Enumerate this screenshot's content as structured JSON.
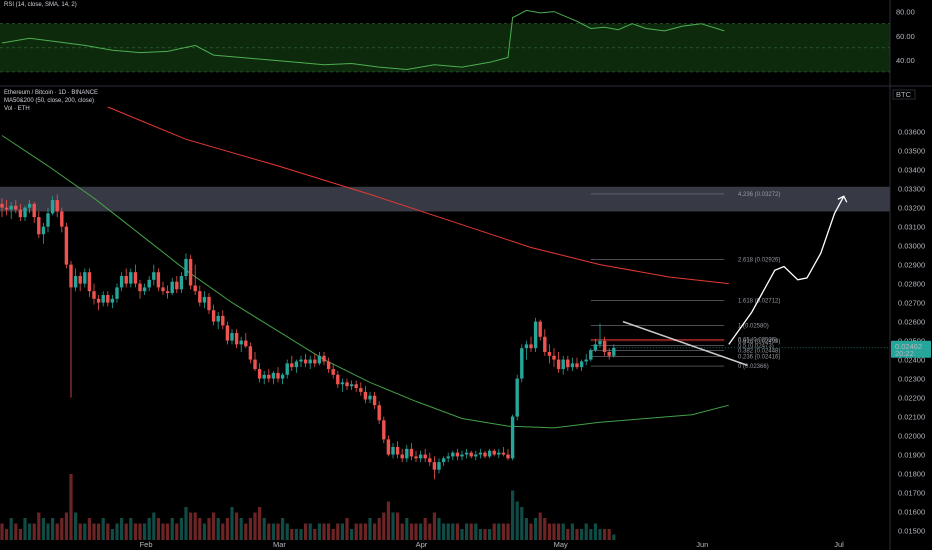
{
  "chart_data": {
    "type": "candlestick",
    "symbol": "Ethereum / Bitcoin · 1D · BINANCE",
    "indicators_legend": [
      "MA50&200 (50, close, 200, close)",
      "Vol · ETH"
    ],
    "rsi_label": "RSI (14, close, SMA, 14, 2)",
    "currency": "BTC",
    "last_price": "0.02462",
    "countdown": "20:22",
    "price_axis": {
      "min": 0.0145,
      "max": 0.0383,
      "ticks": [
        "0.03600",
        "0.03500",
        "0.03400",
        "0.03300",
        "0.03200",
        "0.03100",
        "0.03000",
        "0.02900",
        "0.02800",
        "0.02700",
        "0.02600",
        "0.02500",
        "0.02400",
        "0.02300",
        "0.02200",
        "0.02100",
        "0.02000",
        "0.01900",
        "0.01800",
        "0.01700",
        "0.01600",
        "0.01500"
      ]
    },
    "rsi_axis": {
      "ticks": [
        "80.00",
        "60.00",
        "40.00"
      ],
      "band": [
        30,
        70
      ]
    },
    "x_labels": [
      {
        "text": "Feb",
        "day": 31
      },
      {
        "text": "Mar",
        "day": 60
      },
      {
        "text": "Apr",
        "day": 91
      },
      {
        "text": "May",
        "day": 121
      },
      {
        "text": "Jun",
        "day": 152
      },
      {
        "text": "Jul",
        "day": 182
      }
    ],
    "resistance_zone": [
      0.0318,
      0.0331
    ],
    "fib_levels": [
      {
        "ratio": "0",
        "value": "0.02366",
        "label": "0 (0.02366)"
      },
      {
        "ratio": "0.236",
        "value": "0.02416",
        "label": "0.236 (0.02416)"
      },
      {
        "ratio": "0.382",
        "value": "0.02448",
        "label": "0.382 (0.02448)"
      },
      {
        "ratio": "0.5",
        "value": "0.02473",
        "label": "0.5 (0.02473)"
      },
      {
        "ratio": "0.618",
        "value": "0.02499",
        "label": "0.618 (0.02499)"
      },
      {
        "ratio": "0.65",
        "value": "0.02506",
        "label": "0.65 (0.02506)"
      },
      {
        "ratio": "1",
        "value": "0.02580",
        "label": "1 (0.02580)"
      },
      {
        "ratio": "1.618",
        "value": "0.02712",
        "label": "1.618 (0.02712)"
      },
      {
        "ratio": "2.618",
        "value": "0.02926",
        "label": "2.618 (0.02926)"
      },
      {
        "ratio": "4.236",
        "value": "0.03272",
        "label": "4.236 (0.03272)"
      }
    ],
    "ma200": [
      [
        23,
        0.0373
      ],
      [
        40,
        0.0356
      ],
      [
        60,
        0.0342
      ],
      [
        80,
        0.0327
      ],
      [
        100,
        0.0311
      ],
      [
        115,
        0.0299
      ],
      [
        130,
        0.029
      ],
      [
        145,
        0.02835
      ],
      [
        158,
        0.028
      ]
    ],
    "ma50": [
      [
        0,
        0.0358
      ],
      [
        10,
        0.0342
      ],
      [
        20,
        0.0325
      ],
      [
        30,
        0.0306
      ],
      [
        40,
        0.0287
      ],
      [
        50,
        0.027
      ],
      [
        60,
        0.0255
      ],
      [
        70,
        0.024
      ],
      [
        80,
        0.0228
      ],
      [
        90,
        0.0218
      ],
      [
        100,
        0.0209
      ],
      [
        110,
        0.0205
      ],
      [
        120,
        0.0204
      ],
      [
        130,
        0.0207
      ],
      [
        140,
        0.0209
      ],
      [
        150,
        0.0211
      ],
      [
        158,
        0.0216
      ]
    ],
    "projection": [
      [
        158,
        0.0248
      ],
      [
        163,
        0.0265
      ],
      [
        168,
        0.0287
      ],
      [
        170,
        0.0289
      ],
      [
        173,
        0.0282
      ],
      [
        175,
        0.0283
      ],
      [
        178,
        0.0296
      ],
      [
        181,
        0.0317
      ],
      [
        183,
        0.0326
      ]
    ],
    "trendline": [
      [
        135,
        0.026
      ],
      [
        162,
        0.0237
      ]
    ],
    "candles": [
      [
        0,
        0.0322,
        0.0325,
        0.0315,
        0.032
      ],
      [
        1,
        0.032,
        0.0324,
        0.0316,
        0.0319
      ],
      [
        2,
        0.0319,
        0.0323,
        0.0314,
        0.0321
      ],
      [
        3,
        0.0321,
        0.0324,
        0.0317,
        0.0319
      ],
      [
        4,
        0.0319,
        0.0322,
        0.0313,
        0.0315
      ],
      [
        5,
        0.0315,
        0.0321,
        0.0313,
        0.032
      ],
      [
        6,
        0.032,
        0.0324,
        0.0317,
        0.0322
      ],
      [
        7,
        0.0322,
        0.0323,
        0.0312,
        0.0315
      ],
      [
        8,
        0.0315,
        0.0318,
        0.0304,
        0.0306
      ],
      [
        9,
        0.0306,
        0.0312,
        0.0301,
        0.031
      ],
      [
        10,
        0.031,
        0.032,
        0.0307,
        0.0317
      ],
      [
        11,
        0.0317,
        0.0326,
        0.0316,
        0.0324
      ],
      [
        12,
        0.0324,
        0.0327,
        0.0315,
        0.0318
      ],
      [
        13,
        0.0318,
        0.032,
        0.0307,
        0.031
      ],
      [
        14,
        0.031,
        0.0312,
        0.0288,
        0.029
      ],
      [
        15,
        0.029,
        0.0292,
        0.022,
        0.0278
      ],
      [
        16,
        0.0278,
        0.0288,
        0.0276,
        0.0284
      ],
      [
        17,
        0.0284,
        0.0286,
        0.0276,
        0.028
      ],
      [
        18,
        0.028,
        0.0288,
        0.0278,
        0.0286
      ],
      [
        19,
        0.0286,
        0.0288,
        0.0273,
        0.0276
      ],
      [
        20,
        0.0276,
        0.028,
        0.0269,
        0.0272
      ],
      [
        21,
        0.0272,
        0.0274,
        0.0266,
        0.027
      ],
      [
        22,
        0.027,
        0.0276,
        0.0268,
        0.0274
      ],
      [
        23,
        0.0274,
        0.0276,
        0.0268,
        0.027
      ],
      [
        24,
        0.027,
        0.0274,
        0.0267,
        0.0272
      ],
      [
        25,
        0.0272,
        0.028,
        0.027,
        0.0278
      ],
      [
        26,
        0.0278,
        0.0286,
        0.0276,
        0.0284
      ],
      [
        27,
        0.0284,
        0.0288,
        0.0278,
        0.028
      ],
      [
        28,
        0.028,
        0.0288,
        0.0278,
        0.0286
      ],
      [
        29,
        0.0286,
        0.029,
        0.0278,
        0.028
      ],
      [
        30,
        0.028,
        0.0282,
        0.0272,
        0.0276
      ],
      [
        31,
        0.0276,
        0.028,
        0.0274,
        0.0278
      ],
      [
        32,
        0.0278,
        0.0284,
        0.0276,
        0.0282
      ],
      [
        33,
        0.0282,
        0.029,
        0.0279,
        0.0286
      ],
      [
        34,
        0.0286,
        0.0288,
        0.0276,
        0.0278
      ],
      [
        35,
        0.0278,
        0.0281,
        0.0274,
        0.0276
      ],
      [
        36,
        0.0276,
        0.0279,
        0.0272,
        0.0275
      ],
      [
        37,
        0.0275,
        0.0283,
        0.0274,
        0.0281
      ],
      [
        38,
        0.0281,
        0.0284,
        0.0275,
        0.0277
      ],
      [
        39,
        0.0277,
        0.0286,
        0.0275,
        0.0284
      ],
      [
        40,
        0.0284,
        0.0296,
        0.0282,
        0.0293
      ],
      [
        41,
        0.0293,
        0.0295,
        0.0277,
        0.0279
      ],
      [
        42,
        0.0279,
        0.029,
        0.0274,
        0.0276
      ],
      [
        43,
        0.0276,
        0.0279,
        0.0268,
        0.027
      ],
      [
        44,
        0.027,
        0.0276,
        0.0267,
        0.0273
      ],
      [
        45,
        0.0273,
        0.0275,
        0.0264,
        0.0266
      ],
      [
        46,
        0.0266,
        0.0269,
        0.0258,
        0.026
      ],
      [
        47,
        0.026,
        0.0265,
        0.0256,
        0.0263
      ],
      [
        48,
        0.0263,
        0.0266,
        0.0256,
        0.0258
      ],
      [
        49,
        0.0258,
        0.026,
        0.0248,
        0.025
      ],
      [
        50,
        0.025,
        0.0256,
        0.0248,
        0.0254
      ],
      [
        51,
        0.0254,
        0.0256,
        0.0246,
        0.0248
      ],
      [
        52,
        0.0248,
        0.0252,
        0.0244,
        0.025
      ],
      [
        53,
        0.025,
        0.0254,
        0.0246,
        0.0247
      ],
      [
        54,
        0.0247,
        0.0249,
        0.0238,
        0.024
      ],
      [
        55,
        0.024,
        0.0244,
        0.0234,
        0.0235
      ],
      [
        56,
        0.0235,
        0.0238,
        0.0228,
        0.023
      ],
      [
        57,
        0.023,
        0.0234,
        0.0227,
        0.0232
      ],
      [
        58,
        0.0232,
        0.0235,
        0.0228,
        0.023
      ],
      [
        59,
        0.023,
        0.0234,
        0.0227,
        0.0233
      ],
      [
        60,
        0.0233,
        0.0236,
        0.0228,
        0.023
      ],
      [
        61,
        0.023,
        0.0233,
        0.0227,
        0.0232
      ],
      [
        62,
        0.0232,
        0.024,
        0.023,
        0.0238
      ],
      [
        63,
        0.0238,
        0.0242,
        0.0234,
        0.0236
      ],
      [
        64,
        0.0236,
        0.024,
        0.0233,
        0.0239
      ],
      [
        65,
        0.0239,
        0.0242,
        0.0236,
        0.024
      ],
      [
        66,
        0.024,
        0.0243,
        0.0236,
        0.0238
      ],
      [
        67,
        0.0238,
        0.0242,
        0.0235,
        0.024
      ],
      [
        68,
        0.024,
        0.0243,
        0.0236,
        0.0238
      ],
      [
        69,
        0.0238,
        0.0244,
        0.0237,
        0.0242
      ],
      [
        70,
        0.0242,
        0.0244,
        0.0237,
        0.0239
      ],
      [
        71,
        0.0239,
        0.0241,
        0.0233,
        0.0235
      ],
      [
        72,
        0.0235,
        0.0238,
        0.023,
        0.0232
      ],
      [
        73,
        0.0232,
        0.0234,
        0.0225,
        0.0227
      ],
      [
        74,
        0.0227,
        0.023,
        0.0223,
        0.0228
      ],
      [
        75,
        0.0228,
        0.023,
        0.0224,
        0.0226
      ],
      [
        76,
        0.0226,
        0.0229,
        0.0224,
        0.0227
      ],
      [
        77,
        0.0227,
        0.0229,
        0.0223,
        0.0225
      ],
      [
        78,
        0.0225,
        0.0228,
        0.0221,
        0.0223
      ],
      [
        79,
        0.0223,
        0.0226,
        0.0217,
        0.0219
      ],
      [
        80,
        0.0219,
        0.0223,
        0.0217,
        0.0221
      ],
      [
        81,
        0.0221,
        0.0223,
        0.0214,
        0.0216
      ],
      [
        82,
        0.0216,
        0.0218,
        0.0206,
        0.0208
      ],
      [
        83,
        0.0208,
        0.021,
        0.0196,
        0.0198
      ],
      [
        84,
        0.0198,
        0.02,
        0.0189,
        0.019
      ],
      [
        85,
        0.019,
        0.0196,
        0.0188,
        0.0194
      ],
      [
        86,
        0.0194,
        0.0197,
        0.0188,
        0.019
      ],
      [
        87,
        0.019,
        0.0193,
        0.0186,
        0.0188
      ],
      [
        88,
        0.0188,
        0.0195,
        0.0186,
        0.0193
      ],
      [
        89,
        0.0193,
        0.0196,
        0.0187,
        0.0189
      ],
      [
        90,
        0.0189,
        0.0192,
        0.0186,
        0.0188
      ],
      [
        91,
        0.0188,
        0.0192,
        0.0186,
        0.019
      ],
      [
        92,
        0.019,
        0.0193,
        0.0186,
        0.0188
      ],
      [
        93,
        0.0188,
        0.0191,
        0.0184,
        0.0186
      ],
      [
        94,
        0.0186,
        0.0189,
        0.0177,
        0.0182
      ],
      [
        95,
        0.0182,
        0.0188,
        0.018,
        0.0186
      ],
      [
        96,
        0.0186,
        0.0189,
        0.0184,
        0.0188
      ],
      [
        97,
        0.0188,
        0.0191,
        0.0186,
        0.0189
      ],
      [
        98,
        0.0189,
        0.0192,
        0.0187,
        0.0191
      ],
      [
        99,
        0.0191,
        0.0193,
        0.0187,
        0.0189
      ],
      [
        100,
        0.0189,
        0.0192,
        0.0187,
        0.019
      ],
      [
        101,
        0.019,
        0.0193,
        0.0188,
        0.0191
      ],
      [
        102,
        0.0191,
        0.0192,
        0.0188,
        0.0189
      ],
      [
        103,
        0.0189,
        0.0192,
        0.0187,
        0.019
      ],
      [
        104,
        0.019,
        0.0193,
        0.0188,
        0.0191
      ],
      [
        105,
        0.0191,
        0.0192,
        0.0188,
        0.0189
      ],
      [
        106,
        0.0189,
        0.0193,
        0.0188,
        0.0192
      ],
      [
        107,
        0.0192,
        0.0193,
        0.0189,
        0.019
      ],
      [
        108,
        0.019,
        0.0193,
        0.0188,
        0.0191
      ],
      [
        109,
        0.0191,
        0.0194,
        0.0189,
        0.019
      ],
      [
        110,
        0.019,
        0.0193,
        0.0187,
        0.0188
      ],
      [
        111,
        0.0188,
        0.0211,
        0.0187,
        0.021
      ],
      [
        112,
        0.021,
        0.0232,
        0.0208,
        0.023
      ],
      [
        113,
        0.023,
        0.0248,
        0.0228,
        0.0246
      ],
      [
        114,
        0.0246,
        0.025,
        0.024,
        0.0248
      ],
      [
        115,
        0.0248,
        0.0252,
        0.0244,
        0.0246
      ],
      [
        116,
        0.0246,
        0.0262,
        0.0244,
        0.026
      ],
      [
        117,
        0.026,
        0.0261,
        0.025,
        0.0252
      ],
      [
        118,
        0.0252,
        0.0256,
        0.0242,
        0.0244
      ],
      [
        119,
        0.0244,
        0.0248,
        0.0238,
        0.0242
      ],
      [
        120,
        0.0242,
        0.0246,
        0.0236,
        0.024
      ],
      [
        121,
        0.024,
        0.0244,
        0.0233,
        0.0235
      ],
      [
        122,
        0.0235,
        0.0242,
        0.0232,
        0.024
      ],
      [
        123,
        0.024,
        0.0242,
        0.0234,
        0.0236
      ],
      [
        124,
        0.0236,
        0.0241,
        0.0234,
        0.0238
      ],
      [
        125,
        0.0238,
        0.0241,
        0.0235,
        0.0236
      ],
      [
        126,
        0.0236,
        0.024,
        0.0234,
        0.0239
      ],
      [
        127,
        0.0239,
        0.0243,
        0.0237,
        0.024
      ],
      [
        128,
        0.024,
        0.0246,
        0.0239,
        0.0245
      ],
      [
        129,
        0.0245,
        0.0251,
        0.0244,
        0.0248
      ],
      [
        130,
        0.0248,
        0.0259,
        0.0246,
        0.025
      ],
      [
        131,
        0.025,
        0.0252,
        0.0242,
        0.0244
      ],
      [
        132,
        0.0244,
        0.0246,
        0.024,
        0.0242
      ],
      [
        133,
        0.0242,
        0.0248,
        0.0241,
        0.02462
      ]
    ],
    "volume": [
      3,
      2,
      4,
      3,
      2,
      4,
      3,
      3,
      5,
      4,
      3,
      4,
      3,
      4,
      5,
      12,
      5,
      3,
      3,
      4,
      3,
      3,
      4,
      3,
      2,
      3,
      4,
      3,
      4,
      3,
      3,
      3,
      4,
      5,
      4,
      3,
      3,
      4,
      3,
      4,
      6,
      5,
      5,
      4,
      3,
      4,
      5,
      4,
      3,
      4,
      6,
      5,
      4,
      3,
      4,
      5,
      6,
      4,
      3,
      3,
      3,
      4,
      3,
      2,
      2,
      2,
      3,
      3,
      2,
      3,
      3,
      3,
      2,
      3,
      3,
      4,
      2,
      3,
      3,
      3,
      4,
      3,
      4,
      5,
      7,
      5,
      5,
      3,
      4,
      3,
      3,
      3,
      4,
      3,
      5,
      4,
      3,
      3,
      3,
      3,
      2,
      3,
      3,
      3,
      2,
      2,
      2,
      3,
      3,
      3,
      3,
      9,
      7,
      6,
      4,
      3,
      4,
      5,
      4,
      3,
      3,
      3,
      3,
      2,
      3,
      2,
      2,
      3,
      2,
      3,
      2,
      2,
      2,
      1
    ],
    "rsi": [
      [
        0,
        54
      ],
      [
        6,
        58
      ],
      [
        12,
        55
      ],
      [
        18,
        52
      ],
      [
        24,
        48
      ],
      [
        30,
        46
      ],
      [
        36,
        47
      ],
      [
        42,
        52
      ],
      [
        46,
        44
      ],
      [
        52,
        42
      ],
      [
        58,
        40
      ],
      [
        64,
        38
      ],
      [
        70,
        36
      ],
      [
        76,
        37
      ],
      [
        82,
        34
      ],
      [
        88,
        32
      ],
      [
        94,
        36
      ],
      [
        100,
        34
      ],
      [
        106,
        38
      ],
      [
        110,
        42
      ],
      [
        111,
        75
      ],
      [
        114,
        81
      ],
      [
        117,
        79
      ],
      [
        120,
        80
      ],
      [
        125,
        72
      ],
      [
        128,
        66
      ],
      [
        131,
        67
      ],
      [
        134,
        65
      ],
      [
        137,
        70
      ],
      [
        140,
        66
      ],
      [
        144,
        64
      ],
      [
        148,
        68
      ],
      [
        152,
        70
      ],
      [
        157,
        64
      ]
    ]
  }
}
